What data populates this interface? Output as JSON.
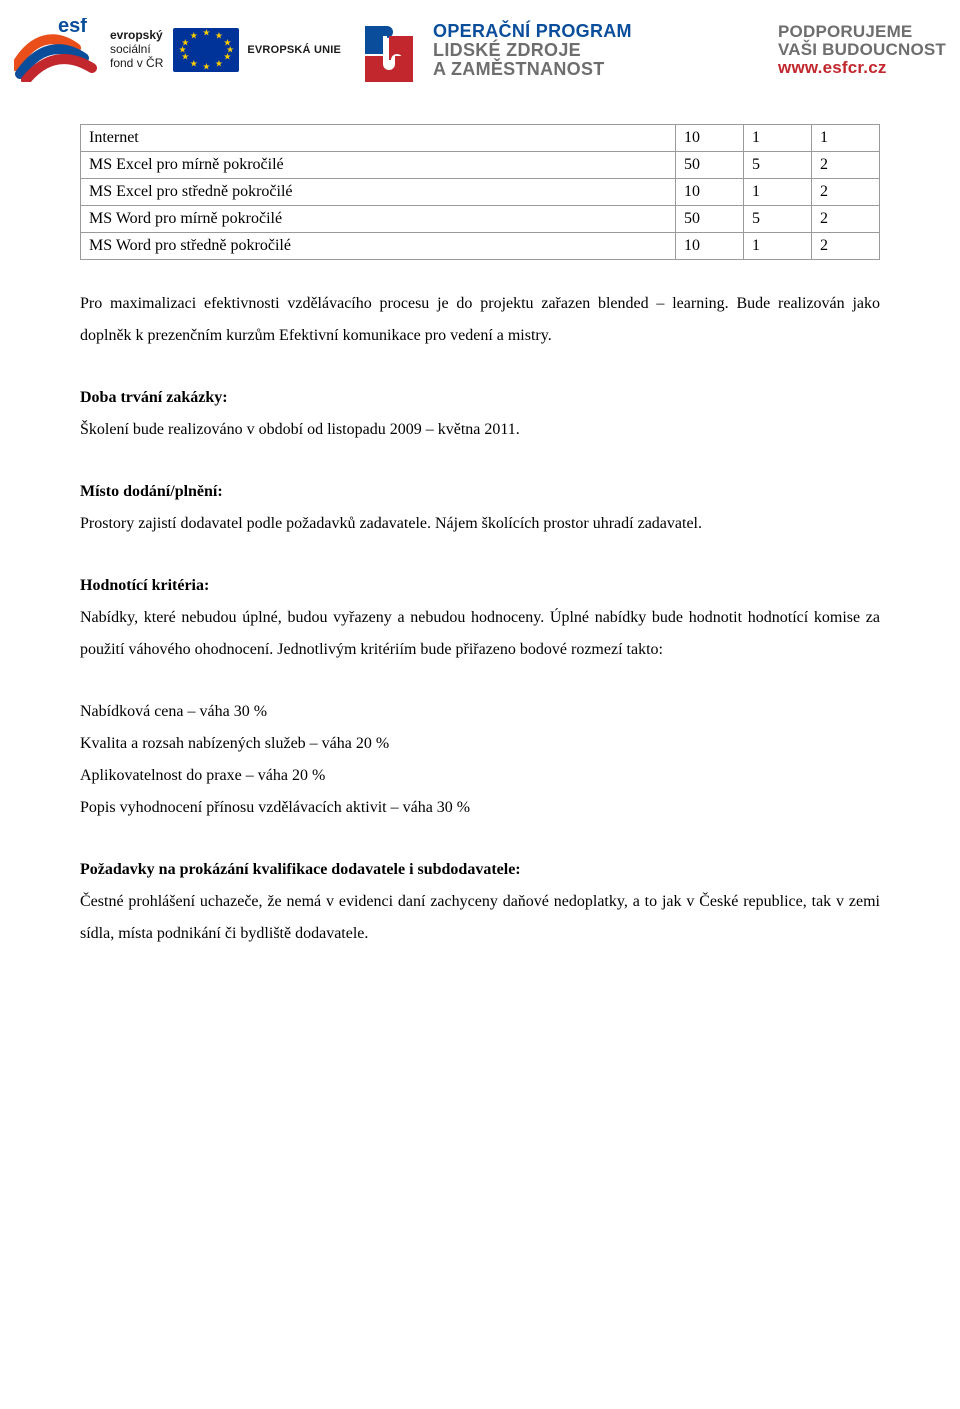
{
  "header": {
    "esf": {
      "line1": "evropský",
      "line2": "sociální",
      "line3": "fond v ČR"
    },
    "eu_label": "EVROPSKÁ UNIE",
    "op": {
      "line1": "OPERAČNÍ PROGRAM",
      "line2": "LIDSKÉ ZDROJE",
      "line3": "A ZAMĚSTNANOST"
    },
    "right": {
      "line1": "PODPORUJEME",
      "line2": "VAŠI BUDOUCNOST",
      "line3": "www.esfcr.cz"
    },
    "colors": {
      "op_blue": "#0a4e9b",
      "grey": "#6e6e6e",
      "red": "#c1272d",
      "eu_blue": "#003399",
      "eu_gold": "#ffcc00",
      "esf_orange": "#e94e1b",
      "esf_blue": "#0a4e9b",
      "esf_red": "#c1272d"
    }
  },
  "table": {
    "col_widths": {
      "name": "auto",
      "num1": 68,
      "num2": 68,
      "num3": 68
    },
    "rows": [
      {
        "name": "Internet",
        "c1": "10",
        "c2": "1",
        "c3": "1"
      },
      {
        "name": "MS Excel pro mírně pokročilé",
        "c1": "50",
        "c2": "5",
        "c3": "2"
      },
      {
        "name": "MS Excel pro středně pokročilé",
        "c1": "10",
        "c2": "1",
        "c3": "2"
      },
      {
        "name": "MS Word pro mírně pokročilé",
        "c1": "50",
        "c2": "5",
        "c3": "2"
      },
      {
        "name": "MS Word pro středně pokročilé",
        "c1": "10",
        "c2": "1",
        "c3": "2"
      }
    ]
  },
  "paragraphs": {
    "intro": "Pro maximalizaci efektivnosti vzdělávacího procesu je do projektu zařazen blended – learning. Bude realizován jako doplněk k prezenčním kurzům Efektivní komunikace pro vedení a mistry."
  },
  "sections": {
    "duration": {
      "title": "Doba trvání zakázky:",
      "body": "Školení bude realizováno v období od listopadu 2009 – května 2011."
    },
    "place": {
      "title": "Místo dodání/plnění:",
      "body": "Prostory zajistí dodavatel podle požadavků zadavatele. Nájem školících prostor uhradí zadavatel."
    },
    "criteria": {
      "title": "Hodnotící kritéria:",
      "body": "Nabídky, které nebudou úplné, budou vyřazeny a nebudou hodnoceny. Úplné nabídky bude hodnotit hodnotící komise za použití váhového ohodnocení. Jednotlivým kritériím bude přiřazeno bodové rozmezí takto:"
    },
    "weights": [
      "Nabídková cena – váha 30 %",
      "Kvalita a rozsah nabízených služeb – váha 20 %",
      "Aplikovatelnost do praxe – váha 20 %",
      "Popis vyhodnocení přínosu vzdělávacích aktivit – váha 30 %"
    ],
    "qualification": {
      "title": "Požadavky na prokázání kvalifikace dodavatele i subdodavatele:",
      "body": "Čestné prohlášení uchazeče, že nemá v evidenci daní zachyceny daňové nedoplatky, a to jak v České republice, tak v zemi sídla, místa podnikání či bydliště dodavatele."
    }
  },
  "typography": {
    "body_font": "Times New Roman",
    "body_size_pt": 12,
    "line_height": 2.0,
    "header_font": "Arial",
    "background": "#ffffff",
    "text_color": "#000000",
    "table_border_color": "#9a9a9a"
  }
}
